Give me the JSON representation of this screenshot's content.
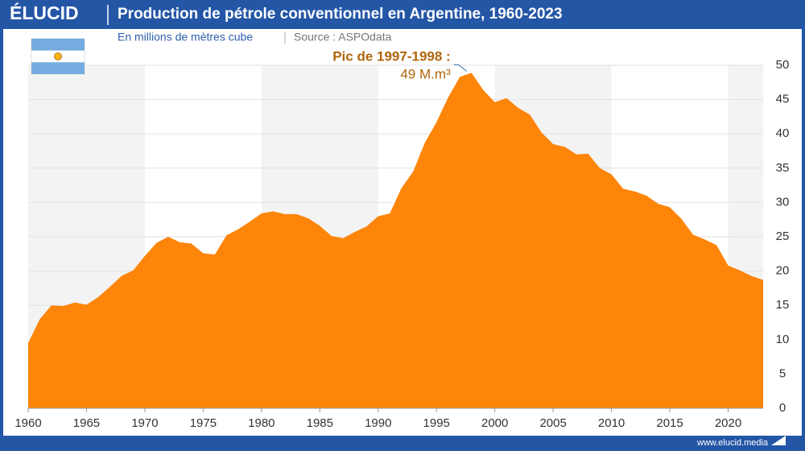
{
  "chart_data": {
    "type": "area",
    "brand": "ÉLUCID",
    "title": "Production de pétrole conventionnel en Argentine, 1960-2023",
    "subtitle": "En millions de mètres cube",
    "source": "Source : ASPOdata",
    "footer": "www.elucid.media",
    "annotation": [
      "Pic de 1997-1998 :",
      "49 M.m³"
    ],
    "color": "#fd8509",
    "annotation_color": "#b0650c",
    "x": [
      1960,
      1961,
      1962,
      1963,
      1964,
      1965,
      1966,
      1967,
      1968,
      1969,
      1970,
      1971,
      1972,
      1973,
      1974,
      1975,
      1976,
      1977,
      1978,
      1979,
      1980,
      1981,
      1982,
      1983,
      1984,
      1985,
      1986,
      1987,
      1988,
      1989,
      1990,
      1991,
      1992,
      1993,
      1994,
      1995,
      1996,
      1997,
      1998,
      1999,
      2000,
      2001,
      2002,
      2003,
      2004,
      2005,
      2006,
      2007,
      2008,
      2009,
      2010,
      2011,
      2012,
      2013,
      2014,
      2015,
      2016,
      2017,
      2018,
      2019,
      2020,
      2021,
      2022,
      2023
    ],
    "values": [
      9.5,
      13,
      15,
      14.9,
      15.4,
      15.1,
      16.2,
      17.7,
      19.3,
      20.1,
      22.2,
      24.1,
      25.0,
      24.2,
      24.0,
      22.6,
      22.4,
      25.2,
      26.1,
      27.2,
      28.4,
      28.7,
      28.3,
      28.3,
      27.7,
      26.6,
      25.1,
      24.8,
      25.7,
      26.5,
      28.0,
      28.4,
      32.1,
      34.5,
      38.7,
      41.7,
      45.3,
      48.3,
      48.9,
      46.4,
      44.6,
      45.2,
      43.8,
      42.8,
      40.2,
      38.5,
      38.1,
      37.0,
      37.1,
      35.0,
      34.1,
      32.0,
      31.6,
      31.0,
      29.8,
      29.3,
      27.6,
      25.3,
      24.6,
      23.8,
      20.8,
      20.1,
      19.3,
      18.7
    ],
    "xlim": [
      1960,
      2023
    ],
    "xticks": [
      1960,
      1965,
      1970,
      1975,
      1980,
      1985,
      1990,
      1995,
      2000,
      2005,
      2010,
      2015,
      2020
    ],
    "ylim": [
      0,
      50
    ],
    "yticks": [
      0,
      5,
      10,
      15,
      20,
      25,
      30,
      35,
      40,
      45,
      50
    ],
    "grid": true
  }
}
